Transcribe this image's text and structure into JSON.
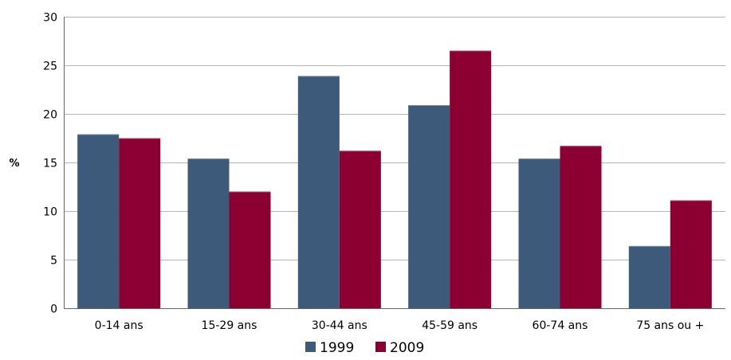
{
  "chart_data": {
    "type": "bar",
    "title": "",
    "xlabel": "",
    "ylabel": "%",
    "ylim": [
      0,
      30
    ],
    "yticks": [
      0,
      5,
      10,
      15,
      20,
      25,
      30
    ],
    "grid": true,
    "legend_position": "bottom",
    "categories": [
      "0-14 ans",
      "15-29 ans",
      "30-44 ans",
      "45-59 ans",
      "60-74 ans",
      "75 ans ou +"
    ],
    "series": [
      {
        "name": "1999",
        "color": "#3d5a7a",
        "values": [
          17.9,
          15.4,
          23.9,
          20.9,
          15.4,
          6.4
        ]
      },
      {
        "name": "2009",
        "color": "#8b0030",
        "values": [
          17.5,
          12.0,
          16.2,
          26.5,
          16.7,
          11.1
        ]
      }
    ]
  }
}
